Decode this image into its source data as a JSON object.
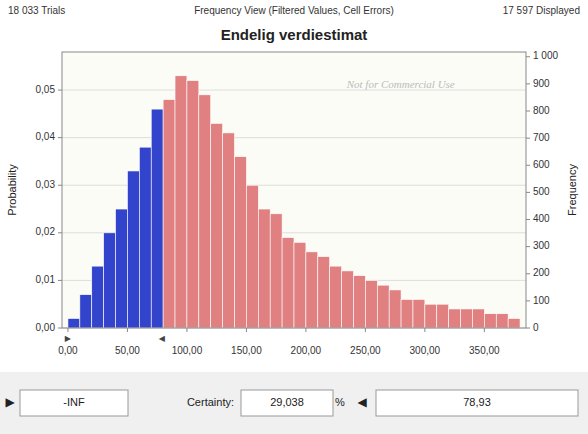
{
  "chart_data": {
    "type": "histogram",
    "title": "Endelig verdiestimat",
    "annotations": [
      "18 033 Trials",
      "Frequency View (Filtered Values, Cell Errors)",
      "17 597 Displayed",
      "Not for Commercial Use"
    ],
    "footer": [
      "▶",
      "-INF",
      "Certainty:",
      "29,038",
      "%",
      "◀",
      "78,93"
    ],
    "x_markers": [
      {
        "value": 0,
        "label": "▶"
      },
      {
        "value": 78.93,
        "label": "◀"
      }
    ],
    "y_label": "Probability",
    "y2_label": "Frequency",
    "bins": [
      0,
      10,
      20,
      30,
      40,
      50,
      60,
      70,
      80,
      90,
      100,
      110,
      120,
      130,
      140,
      150,
      160,
      170,
      180,
      190,
      200,
      210,
      220,
      230,
      240,
      250,
      260,
      270,
      280,
      290,
      300,
      310,
      320,
      330,
      340,
      350,
      360,
      370,
      380
    ],
    "values": [
      0.002,
      0.007,
      0.013,
      0.02,
      0.025,
      0.033,
      0.038,
      0.046,
      0.048,
      0.053,
      0.052,
      0.049,
      0.043,
      0.041,
      0.036,
      0.03,
      0.025,
      0.024,
      0.019,
      0.018,
      0.016,
      0.015,
      0.013,
      0.012,
      0.011,
      0.01,
      0.009,
      0.008,
      0.006,
      0.006,
      0.005,
      0.005,
      0.004,
      0.004,
      0.004,
      0.003,
      0.003,
      0.002
    ],
    "colors": [
      "#3344CC",
      "#3344CC",
      "#3344CC",
      "#3344CC",
      "#3344CC",
      "#3344CC",
      "#3344CC",
      "#3344CC",
      "#E08080",
      "#E08080",
      "#E08080",
      "#E08080",
      "#E08080",
      "#E08080",
      "#E08080",
      "#E08080",
      "#E08080",
      "#E08080",
      "#E08080",
      "#E08080",
      "#E08080",
      "#E08080",
      "#E08080",
      "#E08080",
      "#E08080",
      "#E08080",
      "#E08080",
      "#E08080",
      "#E08080",
      "#E08080",
      "#E08080",
      "#E08080",
      "#E08080",
      "#E08080",
      "#E08080",
      "#E08080",
      "#E08080",
      "#E08080"
    ],
    "xlim": [
      -5,
      385
    ],
    "xticks": [
      {
        "value": 0,
        "label": "0,00"
      },
      {
        "value": 50,
        "label": "50,00"
      },
      {
        "value": 100,
        "label": "100,00"
      },
      {
        "value": 150,
        "label": "150,00"
      },
      {
        "value": 200,
        "label": "200,00"
      },
      {
        "value": 250,
        "label": "250,00"
      },
      {
        "value": 300,
        "label": "300,00"
      },
      {
        "value": 350,
        "label": "350,00"
      }
    ],
    "ylim": [
      0,
      0.058
    ],
    "yticks": [
      {
        "value": 0.0,
        "label": "0,00"
      },
      {
        "value": 0.01,
        "label": "0,01"
      },
      {
        "value": 0.02,
        "label": "0,02"
      },
      {
        "value": 0.03,
        "label": "0,03"
      },
      {
        "value": 0.04,
        "label": "0,04"
      },
      {
        "value": 0.05,
        "label": "0,05"
      }
    ],
    "y2lim": [
      0,
      1017.5438596491229
    ],
    "y2ticks": [
      0,
      100,
      200,
      300,
      400,
      500,
      600,
      700,
      800,
      900,
      {
        "value": 1000,
        "label": "1 000"
      }
    ],
    "grid": true
  }
}
